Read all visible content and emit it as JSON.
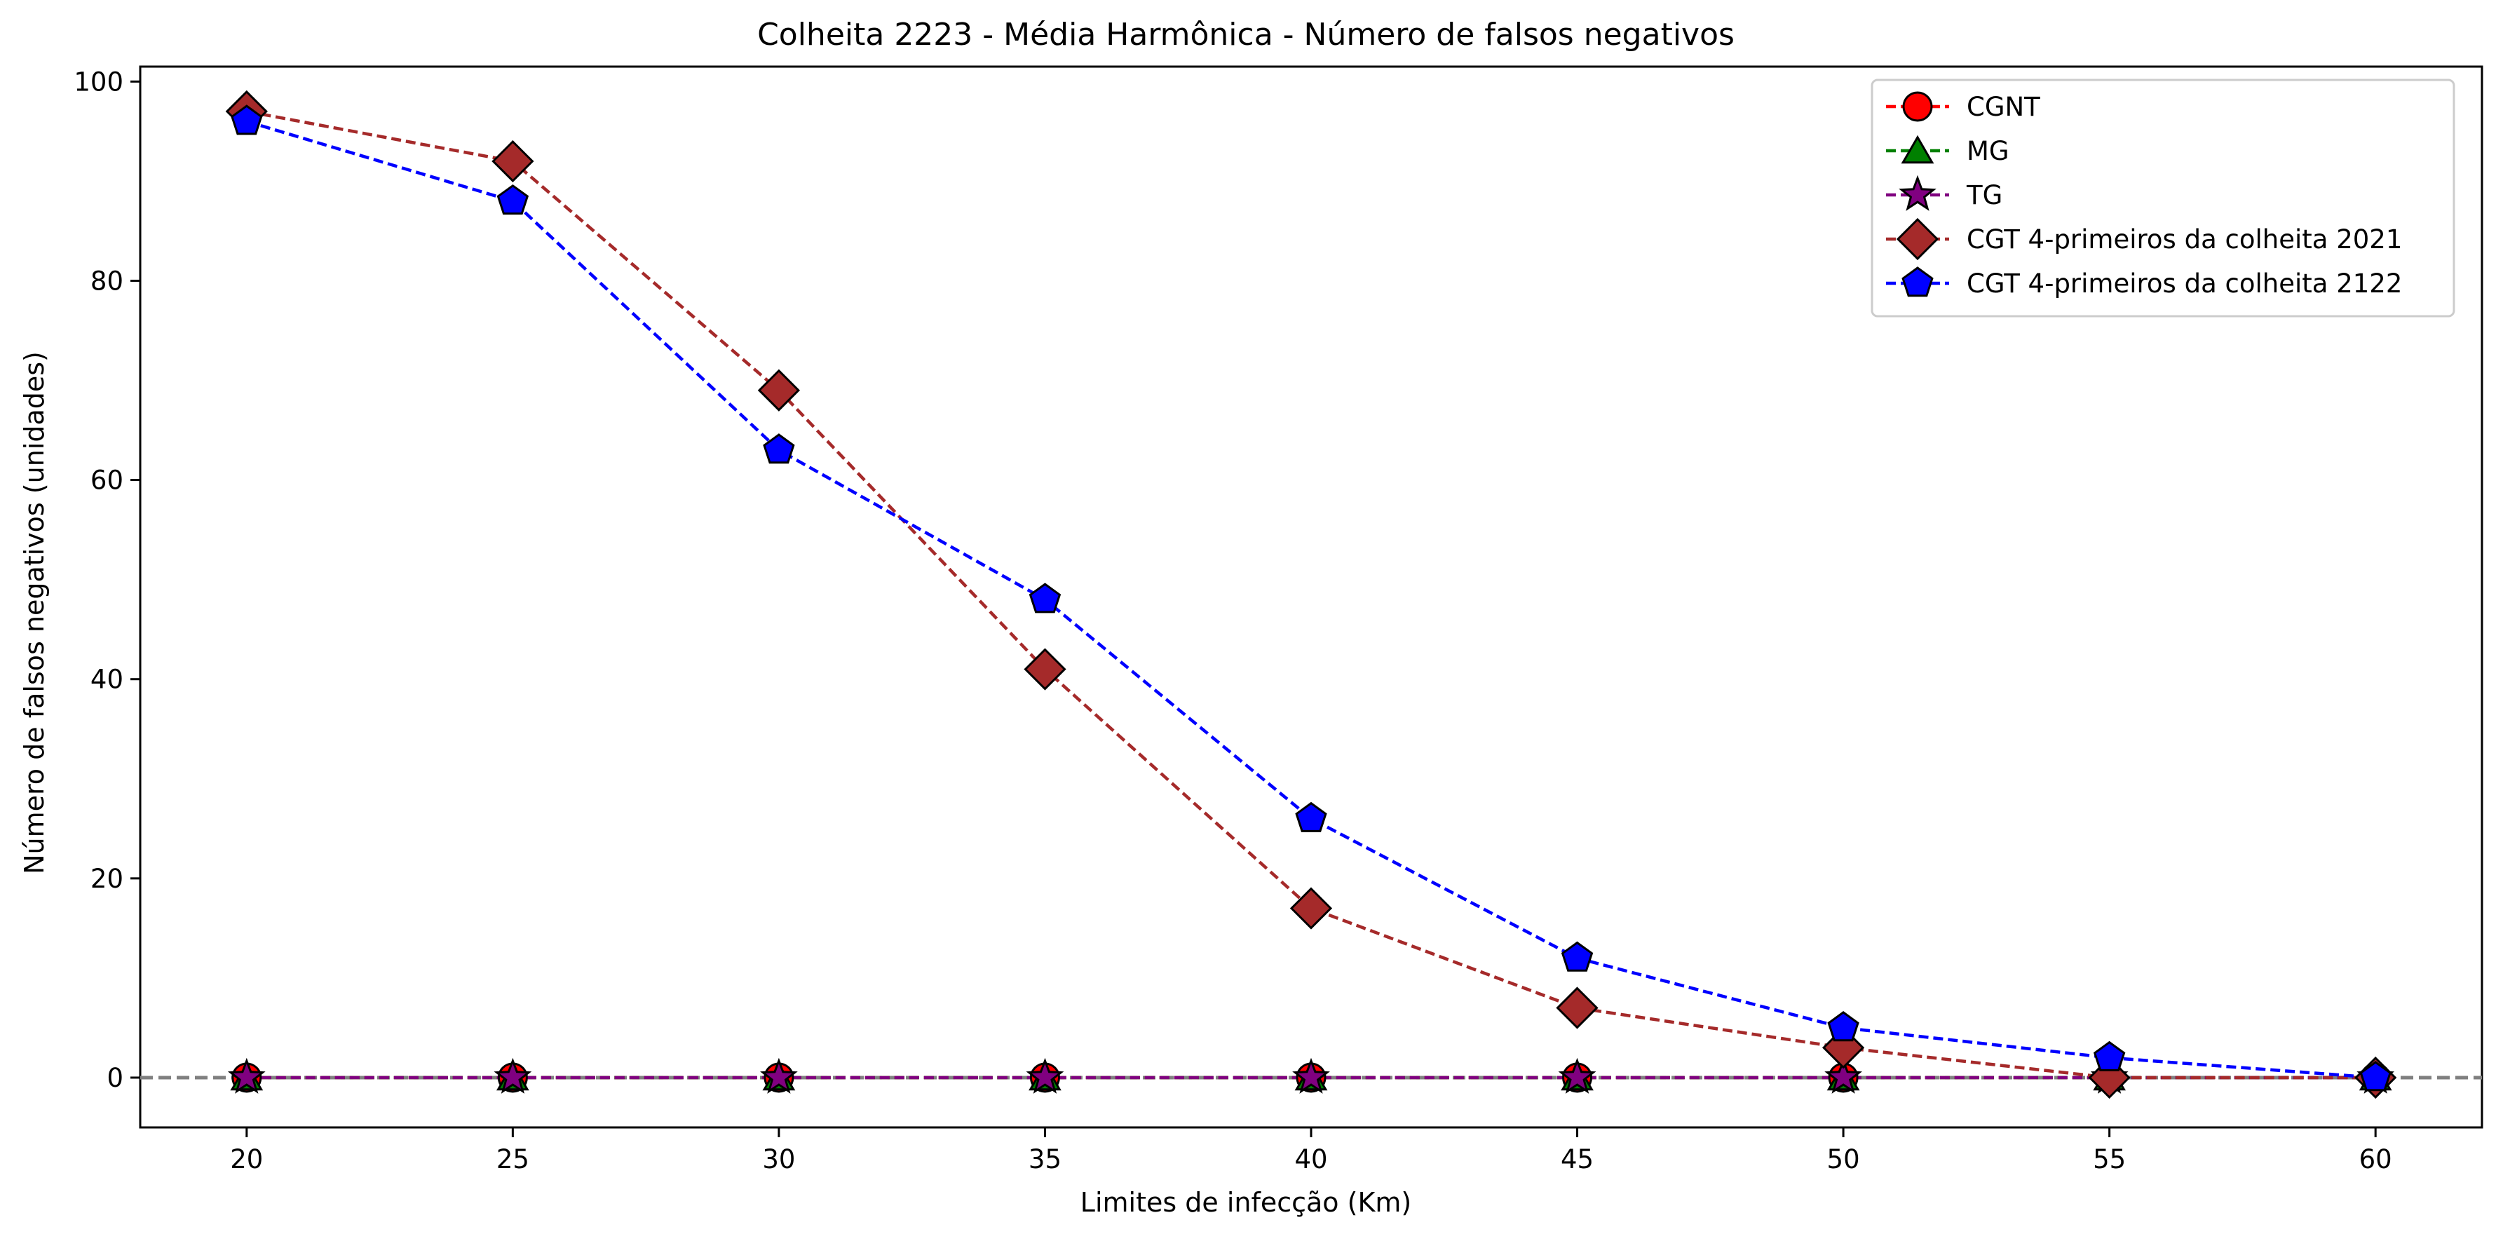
{
  "chart_data": {
    "type": "line",
    "title": "Colheita 2223 - Média Harmônica - Número de falsos negativos",
    "xlabel": "Limites de infecção (Km)",
    "ylabel": "Número de falsos negativos (unidades)",
    "x": [
      20,
      25,
      30,
      35,
      40,
      45,
      50,
      55,
      60
    ],
    "xlim": [
      18,
      62
    ],
    "ylim": [
      -5,
      101.5
    ],
    "x_ticks": [
      20,
      25,
      30,
      35,
      40,
      45,
      50,
      55,
      60
    ],
    "y_ticks": [
      0,
      20,
      40,
      60,
      80,
      100
    ],
    "grid": false,
    "legend_position": "top-right",
    "reference_line": {
      "y": 0,
      "color": "#808080",
      "style": "dashed"
    },
    "series": [
      {
        "name": "CGNT",
        "color": "#ff0000",
        "marker": "circle",
        "values": [
          0,
          0,
          0,
          0,
          0,
          0,
          0,
          0,
          0
        ]
      },
      {
        "name": "MG",
        "color": "#008000",
        "marker": "triangle",
        "values": [
          0,
          0,
          0,
          0,
          0,
          0,
          0,
          0,
          0
        ]
      },
      {
        "name": "TG",
        "color": "#800080",
        "marker": "star",
        "values": [
          0,
          0,
          0,
          0,
          0,
          0,
          0,
          0,
          0
        ]
      },
      {
        "name": "CGT 4-primeiros da colheita 2021",
        "color": "#a52a2a",
        "marker": "diamond",
        "values": [
          97,
          92,
          69,
          41,
          17,
          7,
          3,
          0,
          0
        ]
      },
      {
        "name": "CGT 4-primeiros da colheita 2122",
        "color": "#0000ff",
        "marker": "pentagon",
        "values": [
          96,
          88,
          63,
          48,
          26,
          12,
          5,
          2,
          0
        ]
      }
    ]
  }
}
